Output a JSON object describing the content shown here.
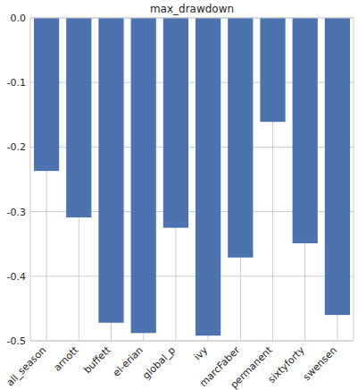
{
  "chart_data": {
    "type": "bar",
    "title": "max_drawdown",
    "categories": [
      "all_season",
      "arnott",
      "buffett",
      "el-erian",
      "global_p",
      "ivy",
      "marcFaber",
      "permanent",
      "sixtyforty",
      "swensen"
    ],
    "values": [
      -0.237,
      -0.309,
      -0.472,
      -0.488,
      -0.325,
      -0.492,
      -0.371,
      -0.161,
      -0.349,
      -0.46
    ],
    "color": "#4c72b0",
    "ylim": [
      -0.5,
      0
    ],
    "yticks": [
      {
        "value": 0,
        "label": "0.0"
      },
      -0.1,
      -0.2,
      -0.3,
      -0.4,
      -0.5
    ],
    "grid": true
  }
}
